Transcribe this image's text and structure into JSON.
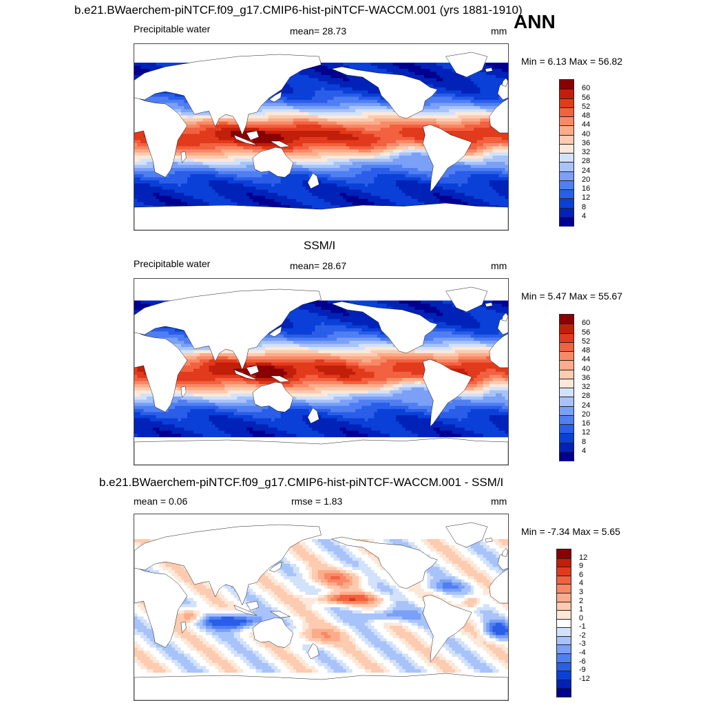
{
  "header": {
    "title": "b.e21.BWaerchem-piNTCF.f09_g17.CMIP6-hist-piNTCF-WACCM.001 (yrs 1881-1910)",
    "season": "ANN"
  },
  "colors": {
    "pw": [
      "#00008f",
      "#0022b8",
      "#0a40d8",
      "#2a5ee8",
      "#4f7ff2",
      "#7aa0f7",
      "#a8c3fa",
      "#d2e2fc",
      "#fde8d8",
      "#fdcbb0",
      "#fcac8a",
      "#f98966",
      "#f26140",
      "#e23a1c",
      "#c21f0a",
      "#8a0000"
    ],
    "diff": [
      "#00008f",
      "#0022b8",
      "#0a40d8",
      "#2a5ee8",
      "#4f7ff2",
      "#7aa0f7",
      "#a8c3fa",
      "#d2e2fc",
      "#ffffff",
      "#fde8d8",
      "#fdcbb0",
      "#fcac8a",
      "#f98966",
      "#f26140",
      "#e23a1c",
      "#c21f0a",
      "#8a0000"
    ],
    "land": "#ffffff",
    "coast": "#000000"
  },
  "panels": [
    {
      "id": "model",
      "title": "",
      "variable": "Precipitable water",
      "mean_text": "mean=  28.73",
      "units": "mm",
      "minmax": "Min =   6.13 Max =  56.82",
      "colorbar": {
        "labels": [
          "60",
          "56",
          "52",
          "48",
          "44",
          "40",
          "36",
          "32",
          "28",
          "24",
          "20",
          "16",
          "12",
          "8",
          "4"
        ],
        "palette": "pw"
      }
    },
    {
      "id": "obs",
      "title": "SSM/I",
      "variable": "Precipitable water",
      "mean_text": "mean=  28.67",
      "units": "mm",
      "minmax": "Min =   5.47 Max =  55.67",
      "colorbar": {
        "labels": [
          "60",
          "56",
          "52",
          "48",
          "44",
          "40",
          "36",
          "32",
          "28",
          "24",
          "20",
          "16",
          "12",
          "8",
          "4"
        ],
        "palette": "pw"
      }
    },
    {
      "id": "diff",
      "title": "b.e21.BWaerchem-piNTCF.f09_g17.CMIP6-hist-piNTCF-WACCM.001 - SSM/I",
      "mean_text": "mean =   0.06",
      "rmse_text": "rmse =   1.83",
      "units": "mm",
      "minmax": "Min =  -7.34 Max =   5.65",
      "colorbar": {
        "labels": [
          "12",
          "9",
          "6",
          "4",
          "3",
          "2",
          "1",
          "0",
          "-1",
          "-2",
          "-3",
          "-4",
          "-6",
          "-9",
          "-12"
        ],
        "palette": "diff"
      }
    }
  ]
}
